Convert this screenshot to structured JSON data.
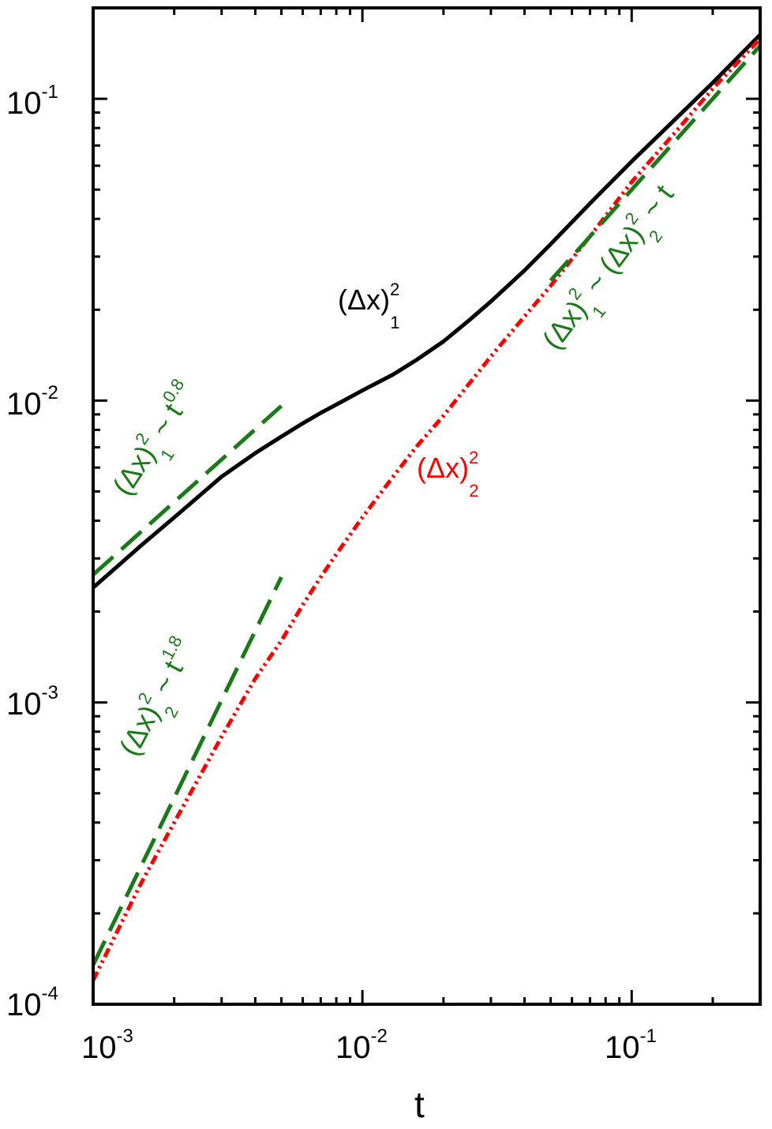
{
  "chart_data": {
    "type": "line",
    "title": "",
    "xlabel": "t",
    "ylabel": "",
    "x_scale": "log",
    "y_scale": "log",
    "xlim": [
      0.001,
      0.3
    ],
    "ylim": [
      0.0001,
      0.2
    ],
    "grid": false,
    "x_ticks": [
      {
        "base": "10",
        "exp": "-3",
        "value": 0.001
      },
      {
        "base": "10",
        "exp": "-2",
        "value": 0.01
      },
      {
        "base": "10",
        "exp": "-1",
        "value": 0.1
      }
    ],
    "y_ticks": [
      {
        "base": "10",
        "exp": "-4",
        "value": 0.0001
      },
      {
        "base": "10",
        "exp": "-3",
        "value": 0.001
      },
      {
        "base": "10",
        "exp": "-2",
        "value": 0.01
      },
      {
        "base": "10",
        "exp": "-1",
        "value": 0.1
      }
    ],
    "series": [
      {
        "color": "#000000",
        "style": "solid",
        "x": [
          0.001,
          0.0015,
          0.002,
          0.003,
          0.004,
          0.005,
          0.006,
          0.007,
          0.008,
          0.01,
          0.013,
          0.016,
          0.02,
          0.025,
          0.03,
          0.04,
          0.05,
          0.07,
          0.1,
          0.15,
          0.2,
          0.3
        ],
        "y": [
          0.0024,
          0.0033,
          0.0041,
          0.0056,
          0.0067,
          0.0076,
          0.0084,
          0.0091,
          0.0097,
          0.0108,
          0.0122,
          0.0137,
          0.0157,
          0.0185,
          0.0213,
          0.027,
          0.033,
          0.045,
          0.062,
          0.088,
          0.113,
          0.163
        ]
      },
      {
        "color": "#ff0000",
        "style": "dash-dot-dot",
        "x": [
          0.001,
          0.0015,
          0.002,
          0.003,
          0.004,
          0.005,
          0.006,
          0.007,
          0.008,
          0.01,
          0.013,
          0.016,
          0.02,
          0.03,
          0.04,
          0.05,
          0.07,
          0.1,
          0.15,
          0.2,
          0.3
        ],
        "y": [
          0.00012,
          0.00025,
          0.0004,
          0.00077,
          0.0012,
          0.0016,
          0.0021,
          0.0026,
          0.0031,
          0.0041,
          0.0056,
          0.0071,
          0.0089,
          0.014,
          0.019,
          0.024,
          0.035,
          0.053,
          0.08,
          0.108,
          0.158
        ]
      },
      {
        "color": "#1a7a1a",
        "style": "dashed",
        "x": [
          0.001,
          0.005
        ],
        "y": [
          0.00265,
          0.0096
        ]
      },
      {
        "color": "#1a7a1a",
        "style": "dashed",
        "x": [
          0.001,
          0.005
        ],
        "y": [
          0.000135,
          0.0026
        ]
      },
      {
        "color": "#1a7a1a",
        "style": "dashed",
        "x": [
          0.05,
          0.3
        ],
        "y": [
          0.025,
          0.15
        ]
      }
    ],
    "annotations": [
      {
        "color": "#000000",
        "base": "(Δx)",
        "sup": "2",
        "sub": "1",
        "tail": ""
      },
      {
        "color": "#ff0000",
        "base": "(Δx)",
        "sup": "2",
        "sub": "2",
        "tail": ""
      },
      {
        "color": "#1a7a1a",
        "base": "(Δx)",
        "sup": "2",
        "sub": "1",
        "tail": " ~ t",
        "tail_sup": "0.8"
      },
      {
        "color": "#1a7a1a",
        "base": "(Δx)",
        "sup": "2",
        "sub": "2",
        "tail": " ~ t",
        "tail_sup": "1.8"
      },
      {
        "color": "#1a7a1a",
        "base": "(Δx)",
        "sup": "2",
        "sub": "1",
        "mid": " ~ (Δx)",
        "mid_sup": "2",
        "mid_sub": "2",
        "tail": " ~ t"
      }
    ]
  }
}
